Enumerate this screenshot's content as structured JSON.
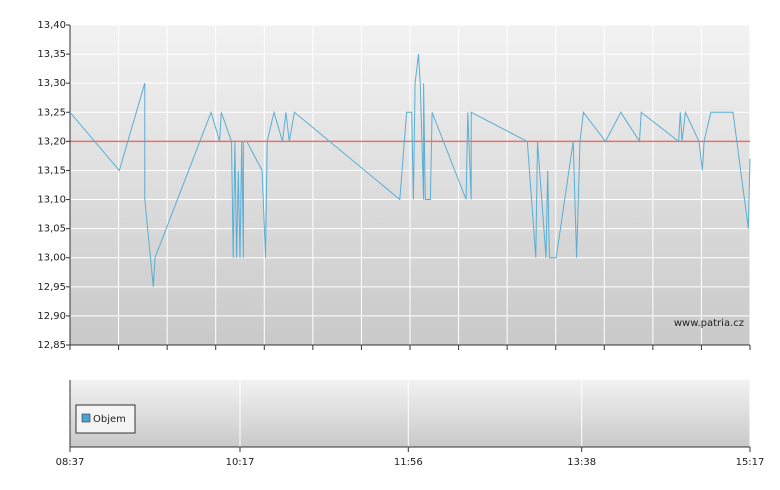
{
  "chart_data": [
    {
      "type": "line",
      "x": [
        "08:37",
        "09:06",
        "09:21",
        "09:21",
        "09:26",
        "09:27",
        "10:00",
        "10:05",
        "10:06",
        "10:12",
        "10:13",
        "10:14",
        "10:15",
        "10:16",
        "10:17",
        "10:18",
        "10:19",
        "10:19",
        "10:21",
        "10:30",
        "10:32",
        "10:33",
        "10:37",
        "10:42",
        "10:44",
        "10:46",
        "10:49",
        "11:51",
        "11:55",
        "11:58",
        "11:59",
        "12:00",
        "12:02",
        "12:03",
        "12:05",
        "12:05",
        "12:06",
        "12:09",
        "12:10",
        "12:30",
        "12:31",
        "12:33",
        "12:33",
        "13:06",
        "13:11",
        "13:12",
        "13:17",
        "13:18",
        "13:19",
        "13:23",
        "13:33",
        "13:35",
        "13:37",
        "13:39",
        "13:52",
        "14:01",
        "14:12",
        "14:13",
        "14:35",
        "14:36",
        "14:37",
        "14:39",
        "14:47",
        "14:49",
        "14:50",
        "14:54",
        "15:05",
        "15:07",
        "15:16",
        "15:17"
      ],
      "values": [
        13.25,
        13.15,
        13.3,
        13.1,
        12.95,
        13.0,
        13.25,
        13.2,
        13.25,
        13.2,
        13.0,
        13.2,
        13.0,
        13.15,
        13.0,
        13.2,
        13.0,
        13.2,
        13.2,
        13.15,
        13.0,
        13.2,
        13.25,
        13.2,
        13.25,
        13.2,
        13.25,
        13.1,
        13.25,
        13.25,
        13.1,
        13.3,
        13.35,
        13.3,
        13.1,
        13.3,
        13.1,
        13.1,
        13.25,
        13.1,
        13.25,
        13.1,
        13.25,
        13.2,
        13.0,
        13.2,
        13.0,
        13.15,
        13.0,
        13.0,
        13.2,
        13.0,
        13.2,
        13.25,
        13.2,
        13.25,
        13.2,
        13.25,
        13.2,
        13.25,
        13.2,
        13.25,
        13.2,
        13.15,
        13.2,
        13.25,
        13.25,
        13.25,
        13.05,
        13.17
      ],
      "color": "#5aaed4",
      "xlim": [
        "08:37",
        "15:17"
      ],
      "ylim": [
        12.85,
        13.4
      ],
      "yticks": [
        {
          "value": 12.85,
          "label": "12,85"
        },
        {
          "value": 12.9,
          "label": "12,90"
        },
        {
          "value": 12.95,
          "label": "12,95"
        },
        {
          "value": 13.0,
          "label": "13,00"
        },
        {
          "value": 13.05,
          "label": "13,05"
        },
        {
          "value": 13.1,
          "label": "13,10"
        },
        {
          "value": 13.15,
          "label": "13,15"
        },
        {
          "value": 13.2,
          "label": "13,20"
        },
        {
          "value": 13.25,
          "label": "13,25"
        },
        {
          "value": 13.3,
          "label": "13,30"
        },
        {
          "value": 13.35,
          "label": "13,35"
        },
        {
          "value": 13.4,
          "label": "13,40"
        }
      ],
      "reference_line": 13.2,
      "reference_color": "#e8706a",
      "annotation": "www.patria.cz",
      "grid": true
    },
    {
      "type": "bar",
      "series": [
        {
          "name": "Objem",
          "color": "#4ba3d4",
          "x": [],
          "values": []
        }
      ],
      "xlim": [
        "08:37",
        "15:17"
      ],
      "xticks": [
        "08:37",
        "10:17",
        "11:56",
        "13:38",
        "15:17"
      ],
      "legend": "upper left",
      "grid": true
    }
  ]
}
